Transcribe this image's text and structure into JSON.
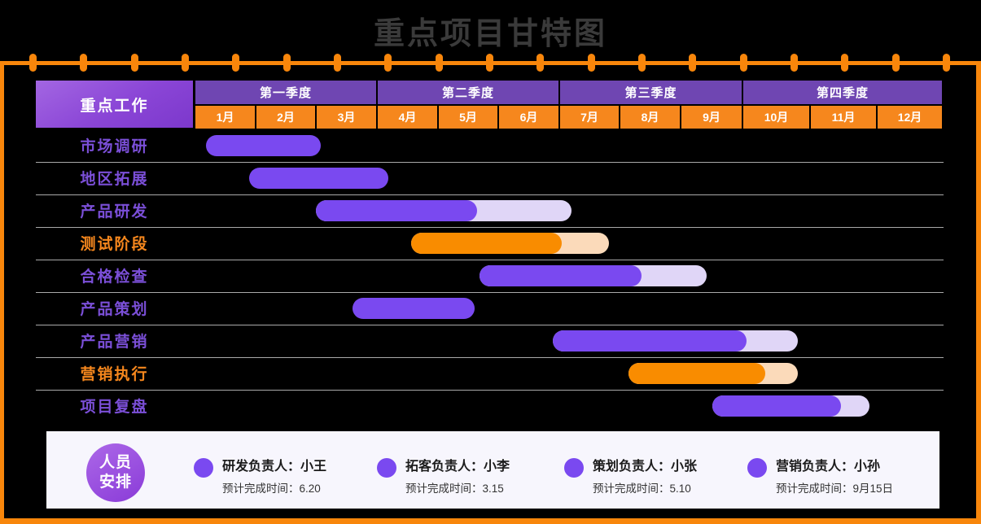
{
  "title": "重点项目甘特图",
  "header": {
    "corner_label": "重点工作"
  },
  "chart_data": {
    "type": "gantt",
    "title": "重点项目甘特图",
    "x_axis": "months 1-12 grouped into quarters",
    "quarters": [
      "第一季度",
      "第二季度",
      "第三季度",
      "第四季度"
    ],
    "months": [
      "1月",
      "2月",
      "3月",
      "4月",
      "5月",
      "6月",
      "7月",
      "8月",
      "9月",
      "10月",
      "11月",
      "12月"
    ],
    "tasks": [
      {
        "name": "市场调研",
        "color": "purple",
        "start": 1.17,
        "end": 3.07,
        "projected_end": null
      },
      {
        "name": "地区拓展",
        "color": "purple",
        "start": 1.88,
        "end": 4.17,
        "projected_end": null
      },
      {
        "name": "产品研发",
        "color": "purple",
        "start": 2.99,
        "end": 5.64,
        "projected_end": 7.19
      },
      {
        "name": "测试阶段",
        "color": "orange",
        "start": 4.55,
        "end": 7.03,
        "projected_end": 7.81
      },
      {
        "name": "合格检查",
        "color": "purple",
        "start": 5.68,
        "end": 8.35,
        "projected_end": 9.41
      },
      {
        "name": "产品策划",
        "color": "purple",
        "start": 3.59,
        "end": 5.59,
        "projected_end": null
      },
      {
        "name": "产品营销",
        "color": "purple",
        "start": 6.88,
        "end": 10.05,
        "projected_end": 10.81
      },
      {
        "name": "营销执行",
        "color": "orange",
        "start": 8.13,
        "end": 10.33,
        "projected_end": 10.81
      },
      {
        "name": "项目复盘",
        "color": "purple",
        "start": 9.5,
        "end": 11.45,
        "projected_end": 11.88
      }
    ]
  },
  "legend": {
    "badge_line1": "人员",
    "badge_line2": "安排",
    "entries": [
      {
        "label": "研发负责人：小王",
        "sub": "预计完成时间：6.20"
      },
      {
        "label": "拓客负责人：小李",
        "sub": "预计完成时间：3.15"
      },
      {
        "label": "策划负责人：小张",
        "sub": "预计完成时间：5.10"
      },
      {
        "label": "营销负责人：小孙",
        "sub": "预计完成时间：9月15日"
      }
    ]
  },
  "colors": {
    "accent_orange": "#F8860B",
    "month_cell_orange": "#F6871D",
    "quarter_purple": "#6F46B2",
    "bar_purple": "#7A49F0",
    "bar_purple_light": "#E0D6F7",
    "bar_orange": "#F98C00",
    "bar_orange_light": "#FBDABA",
    "label_purple": "#7B4FD8",
    "label_orange": "#F6871D",
    "title_gray": "#3A3A3A",
    "panel_bg": "#F7F6FD"
  }
}
